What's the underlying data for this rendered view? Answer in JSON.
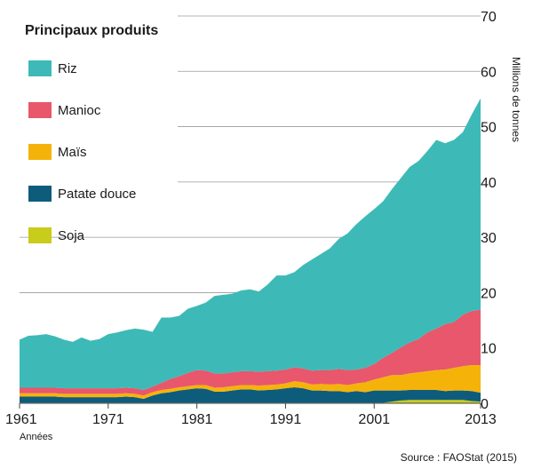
{
  "chart_data": {
    "type": "area",
    "stacked": true,
    "title": "",
    "legend_title": "Principaux produits",
    "xlabel": "Années",
    "ylabel": "Millions de tonnes",
    "source": "Source : FAOStat (2015)",
    "xlim": [
      1961,
      2013
    ],
    "ylim": [
      0,
      70
    ],
    "x_ticks": [
      "1961",
      "1971",
      "1981",
      "1991",
      "2001",
      "2013"
    ],
    "y_ticks": [
      "0",
      "10",
      "20",
      "30",
      "40",
      "50",
      "60",
      "70"
    ],
    "grid": "horizontal",
    "legend_position": "top-left",
    "x": [
      1961,
      1962,
      1963,
      1964,
      1965,
      1966,
      1967,
      1968,
      1969,
      1970,
      1971,
      1972,
      1973,
      1974,
      1975,
      1976,
      1977,
      1978,
      1979,
      1980,
      1981,
      1982,
      1983,
      1984,
      1985,
      1986,
      1987,
      1988,
      1989,
      1990,
      1991,
      1992,
      1993,
      1994,
      1995,
      1996,
      1997,
      1998,
      1999,
      2000,
      2001,
      2002,
      2003,
      2004,
      2005,
      2006,
      2007,
      2008,
      2009,
      2010,
      2011,
      2012,
      2013
    ],
    "series": [
      {
        "name": "Soja",
        "color": "#c8cc1a",
        "values": [
          0.1,
          0.1,
          0.1,
          0.1,
          0.1,
          0.1,
          0.1,
          0.1,
          0.1,
          0.1,
          0.1,
          0.1,
          0.1,
          0.1,
          0.1,
          0.1,
          0.1,
          0.1,
          0.1,
          0.1,
          0.1,
          0.1,
          0.1,
          0.1,
          0.1,
          0.1,
          0.1,
          0.1,
          0.1,
          0.1,
          0.1,
          0.1,
          0.1,
          0.1,
          0.1,
          0.1,
          0.1,
          0.1,
          0.1,
          0.1,
          0.1,
          0.1,
          0.3,
          0.5,
          0.6,
          0.6,
          0.6,
          0.6,
          0.6,
          0.6,
          0.6,
          0.4,
          0.3
        ]
      },
      {
        "name": "Patate douce",
        "color": "#0e5c7c",
        "values": [
          1.1,
          1.1,
          1.1,
          1.1,
          1.1,
          1.0,
          1.0,
          1.0,
          1.0,
          1.0,
          1.0,
          1.0,
          1.1,
          1.0,
          0.7,
          1.3,
          1.7,
          1.9,
          2.2,
          2.4,
          2.6,
          2.5,
          2.0,
          2.0,
          2.2,
          2.4,
          2.4,
          2.2,
          2.3,
          2.4,
          2.6,
          2.8,
          2.6,
          2.2,
          2.2,
          2.1,
          2.1,
          1.9,
          2.1,
          1.9,
          2.2,
          2.2,
          2.0,
          1.8,
          1.8,
          1.8,
          1.8,
          1.8,
          1.6,
          1.7,
          1.7,
          1.8,
          1.6
        ]
      },
      {
        "name": "Maïs",
        "color": "#f5b30a",
        "values": [
          0.6,
          0.6,
          0.6,
          0.6,
          0.6,
          0.6,
          0.6,
          0.6,
          0.6,
          0.6,
          0.6,
          0.6,
          0.6,
          0.6,
          0.6,
          0.6,
          0.6,
          0.6,
          0.6,
          0.6,
          0.6,
          0.7,
          0.7,
          0.8,
          0.8,
          0.8,
          0.8,
          0.9,
          0.9,
          0.9,
          0.9,
          1.1,
          1.1,
          1.1,
          1.2,
          1.2,
          1.3,
          1.3,
          1.4,
          1.8,
          2.0,
          2.4,
          2.8,
          2.8,
          3.0,
          3.2,
          3.4,
          3.6,
          3.9,
          4.1,
          4.4,
          4.7,
          5.0
        ]
      },
      {
        "name": "Manioc",
        "color": "#e8576b",
        "values": [
          1.0,
          1.0,
          1.0,
          1.0,
          1.0,
          1.0,
          1.0,
          1.0,
          1.0,
          1.0,
          1.0,
          1.0,
          1.0,
          1.0,
          1.0,
          1.0,
          1.3,
          1.8,
          2.0,
          2.4,
          2.7,
          2.6,
          2.6,
          2.5,
          2.5,
          2.5,
          2.5,
          2.5,
          2.5,
          2.5,
          2.5,
          2.5,
          2.5,
          2.5,
          2.5,
          2.6,
          2.7,
          2.7,
          2.5,
          2.6,
          2.8,
          3.5,
          4.0,
          5.0,
          5.6,
          6.0,
          7.0,
          7.5,
          8.2,
          8.3,
          9.3,
          9.8,
          10.0
        ]
      },
      {
        "name": "Riz",
        "color": "#3dbab7",
        "values": [
          8.7,
          9.4,
          9.5,
          9.7,
          9.3,
          8.8,
          8.4,
          9.2,
          8.6,
          8.9,
          9.8,
          10.1,
          10.4,
          10.8,
          10.9,
          9.9,
          11.8,
          11.1,
          10.9,
          11.6,
          11.6,
          12.3,
          14.0,
          14.2,
          14.2,
          14.6,
          14.8,
          14.5,
          15.7,
          17.2,
          17.0,
          17.2,
          18.7,
          20.1,
          21.0,
          22.0,
          23.5,
          24.7,
          26.3,
          27.4,
          28.0,
          28.3,
          29.6,
          30.6,
          31.7,
          32.2,
          32.8,
          34.1,
          32.7,
          32.9,
          33.0,
          35.5,
          38.2
        ]
      }
    ]
  }
}
